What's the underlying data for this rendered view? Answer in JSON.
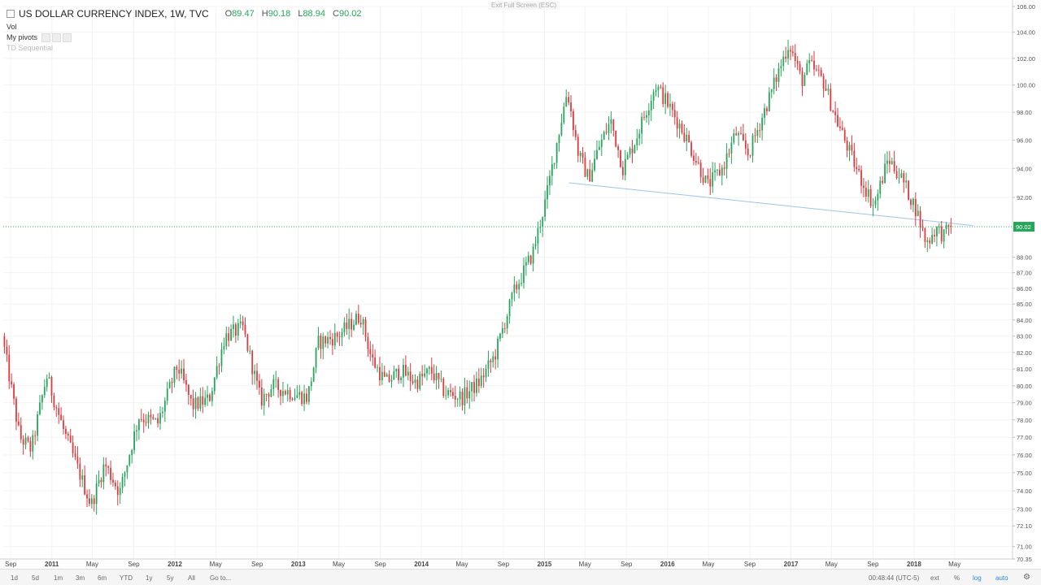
{
  "window": {
    "exit_fullscreen": "Exit Full Screen (ESC)"
  },
  "legend": {
    "symbol": "US DOLLAR CURRENCY INDEX, 1W, TVC",
    "open_key": "O",
    "open": "89.47",
    "high_key": "H",
    "high": "90.18",
    "low_key": "L",
    "low": "88.94",
    "close_key": "C",
    "close": "90.02"
  },
  "indicators": [
    {
      "label": "Vol"
    },
    {
      "label": "My pivots"
    },
    {
      "label": "TD Sequential"
    }
  ],
  "bottom_bar": {
    "ranges": [
      "1d",
      "5d",
      "1m",
      "3m",
      "6m",
      "YTD",
      "1y",
      "5y",
      "All"
    ],
    "goto": "Go to...",
    "clock": "00:48:44 (UTC-5)",
    "ext": "ext",
    "percent": "%",
    "log": "log",
    "auto": "auto"
  },
  "colors": {
    "up": "#26a65b",
    "down": "#e0393e",
    "trendline": "#9ec5e8",
    "price_line": "#26a65b"
  },
  "chart_data": {
    "type": "candlestick",
    "title": "US DOLLAR CURRENCY INDEX, 1W, TVC",
    "xlabel": "",
    "ylabel": "",
    "scale": "log",
    "ylim": [
      70.35,
      106.0
    ],
    "xlim": [
      "2010-08-10",
      "2018-10-20"
    ],
    "y_ticks": [
      106.0,
      104.0,
      102.0,
      100.0,
      98.0,
      96.0,
      94.0,
      92.0,
      88.0,
      87.0,
      86.0,
      85.0,
      84.0,
      83.0,
      82.0,
      81.0,
      80.0,
      79.0,
      78.0,
      77.0,
      76.0,
      75.0,
      74.0,
      73.0,
      72.1,
      71.0,
      70.35
    ],
    "y_tick_labels": [
      "106.00",
      "104.00",
      "102.00",
      "100.00",
      "98.00",
      "96.00",
      "94.00",
      "92.00",
      "88.00",
      "87.00",
      "86.00",
      "85.00",
      "84.00",
      "83.00",
      "82.00",
      "81.00",
      "80.00",
      "79.00",
      "78.00",
      "77.00",
      "76.00",
      "75.00",
      "74.00",
      "73.00",
      "72.10",
      "71.00",
      "70.35"
    ],
    "x_ticks": [
      {
        "date": "2010-09-01",
        "label": "Sep"
      },
      {
        "date": "2011-01-01",
        "label": "2011"
      },
      {
        "date": "2011-05-01",
        "label": "May"
      },
      {
        "date": "2011-09-01",
        "label": "Sep"
      },
      {
        "date": "2012-01-01",
        "label": "2012"
      },
      {
        "date": "2012-05-01",
        "label": "May"
      },
      {
        "date": "2012-09-01",
        "label": "Sep"
      },
      {
        "date": "2013-01-01",
        "label": "2013"
      },
      {
        "date": "2013-05-01",
        "label": "May"
      },
      {
        "date": "2013-09-01",
        "label": "Sep"
      },
      {
        "date": "2014-01-01",
        "label": "2014"
      },
      {
        "date": "2014-05-01",
        "label": "May"
      },
      {
        "date": "2014-09-01",
        "label": "Sep"
      },
      {
        "date": "2015-01-01",
        "label": "2015"
      },
      {
        "date": "2015-05-01",
        "label": "May"
      },
      {
        "date": "2015-09-01",
        "label": "Sep"
      },
      {
        "date": "2016-01-01",
        "label": "2016"
      },
      {
        "date": "2016-05-01",
        "label": "May"
      },
      {
        "date": "2016-09-01",
        "label": "Sep"
      },
      {
        "date": "2017-01-01",
        "label": "2017"
      },
      {
        "date": "2017-05-01",
        "label": "May"
      },
      {
        "date": "2017-09-01",
        "label": "Sep"
      },
      {
        "date": "2018-01-01",
        "label": "2018"
      },
      {
        "date": "2018-05-01",
        "label": "May"
      }
    ],
    "last_price": 90.02,
    "last_price_label": "90.02",
    "trendline": {
      "start": {
        "date": "2015-03-15",
        "value": 93.0
      },
      "end": {
        "date": "2018-06-25",
        "value": 90.1
      }
    },
    "close_path": [
      {
        "date": "2010-08-10",
        "value": 83.0
      },
      {
        "date": "2010-10-01",
        "value": 77.0
      },
      {
        "date": "2010-11-05",
        "value": 76.3
      },
      {
        "date": "2010-12-20",
        "value": 80.6
      },
      {
        "date": "2011-02-10",
        "value": 77.3
      },
      {
        "date": "2011-05-01",
        "value": 73.2
      },
      {
        "date": "2011-06-10",
        "value": 75.5
      },
      {
        "date": "2011-07-25",
        "value": 73.9
      },
      {
        "date": "2011-09-20",
        "value": 78.2
      },
      {
        "date": "2011-11-15",
        "value": 77.8
      },
      {
        "date": "2012-01-12",
        "value": 81.2
      },
      {
        "date": "2012-02-25",
        "value": 78.8
      },
      {
        "date": "2012-04-15",
        "value": 79.2
      },
      {
        "date": "2012-06-01",
        "value": 83.0
      },
      {
        "date": "2012-07-24",
        "value": 83.5
      },
      {
        "date": "2012-09-15",
        "value": 79.1
      },
      {
        "date": "2012-10-20",
        "value": 80.0
      },
      {
        "date": "2012-12-25",
        "value": 79.5
      },
      {
        "date": "2013-02-01",
        "value": 79.3
      },
      {
        "date": "2013-03-05",
        "value": 82.6
      },
      {
        "date": "2013-05-01",
        "value": 83.0
      },
      {
        "date": "2013-07-08",
        "value": 84.3
      },
      {
        "date": "2013-08-10",
        "value": 81.6
      },
      {
        "date": "2013-09-20",
        "value": 80.2
      },
      {
        "date": "2013-11-05",
        "value": 80.9
      },
      {
        "date": "2013-12-20",
        "value": 80.2
      },
      {
        "date": "2014-02-01",
        "value": 80.9
      },
      {
        "date": "2014-03-15",
        "value": 79.6
      },
      {
        "date": "2014-05-05",
        "value": 79.3
      },
      {
        "date": "2014-06-25",
        "value": 80.2
      },
      {
        "date": "2014-08-10",
        "value": 81.8
      },
      {
        "date": "2014-10-05",
        "value": 85.7
      },
      {
        "date": "2014-12-01",
        "value": 88.3
      },
      {
        "date": "2015-01-10",
        "value": 92.0
      },
      {
        "date": "2015-03-13",
        "value": 99.6
      },
      {
        "date": "2015-04-15",
        "value": 95.0
      },
      {
        "date": "2015-05-15",
        "value": 93.3
      },
      {
        "date": "2015-06-15",
        "value": 95.5
      },
      {
        "date": "2015-07-20",
        "value": 97.4
      },
      {
        "date": "2015-08-25",
        "value": 94.0
      },
      {
        "date": "2015-10-01",
        "value": 96.0
      },
      {
        "date": "2015-11-30",
        "value": 100.0
      },
      {
        "date": "2016-01-05",
        "value": 98.6
      },
      {
        "date": "2016-02-20",
        "value": 96.6
      },
      {
        "date": "2016-05-02",
        "value": 92.8
      },
      {
        "date": "2016-06-15",
        "value": 94.0
      },
      {
        "date": "2016-07-25",
        "value": 96.5
      },
      {
        "date": "2016-09-01",
        "value": 95.0
      },
      {
        "date": "2016-10-25",
        "value": 98.6
      },
      {
        "date": "2016-12-30",
        "value": 103.2
      },
      {
        "date": "2017-02-05",
        "value": 100.3
      },
      {
        "date": "2017-03-01",
        "value": 101.5
      },
      {
        "date": "2017-04-10",
        "value": 100.3
      },
      {
        "date": "2017-05-20",
        "value": 97.4
      },
      {
        "date": "2017-07-20",
        "value": 93.8
      },
      {
        "date": "2017-09-08",
        "value": 91.4
      },
      {
        "date": "2017-10-20",
        "value": 94.7
      },
      {
        "date": "2017-12-01",
        "value": 93.2
      },
      {
        "date": "2018-01-10",
        "value": 91.2
      },
      {
        "date": "2018-02-10",
        "value": 88.9
      },
      {
        "date": "2018-03-10",
        "value": 89.9
      },
      {
        "date": "2018-04-05",
        "value": 89.4
      },
      {
        "date": "2018-04-18",
        "value": 90.02
      }
    ]
  }
}
